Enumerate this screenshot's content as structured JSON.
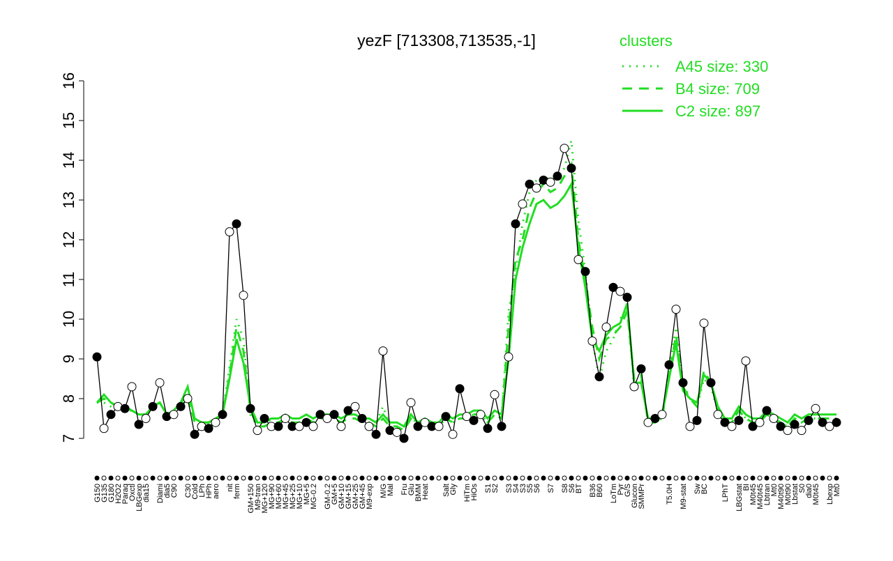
{
  "chart_data": {
    "type": "line",
    "title": "yezF [713308,713535,-1]",
    "categories": [
      "G150",
      "G135",
      "G180",
      "H2O2",
      "Paraq",
      "Oxctl",
      "LBGexp",
      "dia15",
      null,
      "Diami",
      "dia5",
      "C90",
      null,
      "C30",
      "Cold",
      "LPh",
      "HPh",
      "aero",
      null,
      "nit",
      "ferm",
      null,
      "GM+150",
      "M9-tran",
      "MG+120",
      "MG+90",
      "MG+60",
      "MG+45",
      "MG+25",
      "MG+10",
      "MG+5",
      "MG-0.2",
      null,
      "GM-0.2",
      "GM+5",
      "GM+10",
      "GM+15",
      "GM+25",
      "GM+45",
      "M9-exp",
      null,
      "M/G",
      "Mal",
      null,
      "Fru",
      "Glu",
      "BMM",
      "Heat",
      null,
      null,
      "Salt",
      "Gly",
      null,
      "HiTm",
      "HiOs",
      null,
      "S1",
      "S2",
      null,
      "S3",
      "S4",
      "S3",
      "S5",
      "S6",
      null,
      "S7",
      null,
      "S8",
      "S6",
      "BT",
      null,
      "B36",
      "B60",
      null,
      "LoTm",
      "Pyr",
      "G/S",
      "Glucon",
      "SMMPr",
      null,
      null,
      null,
      "T5.0H",
      null,
      "M9-stat",
      null,
      "Sw",
      "BC",
      null,
      null,
      "LPhT",
      null,
      "LBGstat",
      "BI",
      "M0t45",
      "M40t45",
      "Lbtran",
      "Mt0",
      "M40t90",
      "M0t90",
      "Lbstat",
      "S0",
      "dia0",
      "M0t45",
      null,
      "Lbexp",
      "Mt0"
    ],
    "values": [
      9.05,
      7.25,
      7.6,
      7.8,
      7.75,
      8.3,
      7.35,
      7.5,
      7.8,
      8.4,
      7.55,
      7.6,
      7.8,
      8.0,
      7.1,
      7.3,
      7.25,
      7.4,
      7.6,
      12.2,
      12.4,
      10.6,
      7.75,
      7.2,
      7.5,
      7.3,
      7.3,
      7.5,
      7.3,
      7.3,
      7.4,
      7.3,
      7.6,
      7.5,
      7.6,
      7.3,
      7.7,
      7.8,
      7.5,
      7.3,
      7.1,
      9.2,
      7.2,
      7.15,
      7.0,
      7.9,
      7.3,
      7.4,
      7.3,
      7.3,
      7.55,
      7.1,
      8.25,
      7.55,
      7.45,
      7.6,
      7.25,
      8.1,
      7.3,
      9.05,
      12.4,
      12.9,
      13.4,
      13.3,
      13.5,
      13.45,
      13.6,
      14.3,
      13.8,
      11.5,
      11.2,
      9.45,
      8.55,
      9.8,
      10.8,
      10.7,
      10.55,
      8.3,
      8.75,
      7.4,
      7.5,
      7.6,
      8.85,
      10.25,
      8.4,
      7.3,
      7.45,
      9.9,
      8.4,
      7.6,
      7.4,
      7.3,
      7.45,
      8.95,
      7.3,
      7.4,
      7.7,
      7.5,
      7.3,
      7.2,
      7.35,
      7.2,
      7.45,
      7.75,
      7.4,
      7.3,
      7.4
    ],
    "color": "#000000",
    "legend_title": "clusters",
    "series": [
      {
        "name": "A45 size: 330",
        "color": "#22dd22",
        "linestyle": "dotted",
        "values": [
          7.9,
          7.9,
          7.8,
          7.7,
          7.7,
          7.7,
          7.6,
          7.6,
          7.8,
          7.9,
          7.6,
          7.7,
          7.8,
          8.0,
          7.4,
          7.3,
          7.3,
          7.4,
          7.6,
          8.8,
          10.0,
          9.5,
          7.6,
          7.3,
          7.3,
          7.5,
          7.5,
          7.6,
          7.5,
          7.5,
          7.6,
          7.5,
          7.6,
          7.6,
          7.6,
          7.5,
          7.6,
          7.6,
          7.5,
          7.5,
          7.4,
          7.8,
          7.3,
          7.3,
          7.2,
          7.6,
          7.3,
          7.4,
          7.3,
          7.3,
          7.5,
          7.4,
          7.5,
          7.5,
          7.6,
          7.6,
          7.4,
          7.6,
          7.5,
          10.2,
          11.2,
          12.4,
          13.2,
          13.5,
          13.6,
          13.5,
          13.6,
          13.8,
          14.5,
          12.5,
          11.2,
          9.5,
          8.5,
          9.2,
          9.5,
          10.0,
          10.3,
          8.3,
          8.5,
          7.4,
          7.4,
          7.5,
          8.7,
          9.8,
          8.4,
          8.0,
          7.8,
          8.5,
          8.3,
          7.7,
          7.4,
          7.4,
          7.7,
          7.5,
          7.4,
          7.4,
          7.6,
          7.5,
          7.4,
          7.3,
          7.5,
          7.4,
          7.5,
          7.5,
          7.5,
          7.5,
          7.5
        ]
      },
      {
        "name": "B4 size: 709",
        "color": "#22dd22",
        "linestyle": "dashed",
        "values": [
          7.9,
          8.0,
          7.9,
          7.8,
          7.8,
          7.7,
          7.6,
          7.6,
          7.8,
          7.9,
          7.6,
          7.7,
          7.9,
          8.1,
          7.4,
          7.4,
          7.4,
          7.5,
          7.6,
          8.6,
          9.8,
          9.2,
          7.7,
          7.3,
          7.3,
          7.4,
          7.4,
          7.5,
          7.4,
          7.4,
          7.5,
          7.4,
          7.5,
          7.5,
          7.5,
          7.4,
          7.5,
          7.5,
          7.4,
          7.4,
          7.3,
          7.5,
          7.3,
          7.3,
          7.2,
          7.5,
          7.3,
          7.4,
          7.3,
          7.3,
          7.5,
          7.4,
          7.5,
          7.5,
          7.6,
          7.6,
          7.4,
          7.6,
          7.5,
          9.8,
          11.5,
          12.0,
          12.8,
          13.2,
          13.4,
          13.2,
          13.3,
          13.6,
          13.9,
          12.0,
          11.0,
          9.8,
          9.0,
          9.5,
          9.6,
          9.8,
          10.2,
          8.5,
          8.6,
          7.4,
          7.4,
          7.5,
          8.6,
          9.6,
          8.3,
          8.0,
          7.8,
          8.7,
          8.4,
          7.7,
          7.4,
          7.4,
          7.7,
          7.5,
          7.4,
          7.4,
          7.6,
          7.5,
          7.4,
          7.3,
          7.5,
          7.4,
          7.5,
          7.5,
          7.5,
          7.5,
          7.5
        ]
      },
      {
        "name": "C2 size: 897",
        "color": "#22dd22",
        "linestyle": "solid",
        "values": [
          7.9,
          8.1,
          7.9,
          7.8,
          7.8,
          7.7,
          7.6,
          7.6,
          7.8,
          7.9,
          7.6,
          7.7,
          7.9,
          8.3,
          7.5,
          7.4,
          7.4,
          7.5,
          7.6,
          8.5,
          9.5,
          8.9,
          7.8,
          7.4,
          7.4,
          7.5,
          7.5,
          7.6,
          7.5,
          7.5,
          7.6,
          7.5,
          7.6,
          7.6,
          7.6,
          7.5,
          7.6,
          7.6,
          7.5,
          7.5,
          7.4,
          7.6,
          7.4,
          7.4,
          7.3,
          7.6,
          7.4,
          7.5,
          7.4,
          7.4,
          7.6,
          7.5,
          7.6,
          7.6,
          7.7,
          7.7,
          7.5,
          7.7,
          7.6,
          9.0,
          11.0,
          11.8,
          12.4,
          12.9,
          13.0,
          12.8,
          12.9,
          13.1,
          13.4,
          11.8,
          10.8,
          9.5,
          9.2,
          9.6,
          9.8,
          9.9,
          10.4,
          8.4,
          8.4,
          7.5,
          7.5,
          7.6,
          8.5,
          9.4,
          8.2,
          8.0,
          7.9,
          8.6,
          8.4,
          7.8,
          7.5,
          7.5,
          7.8,
          7.6,
          7.5,
          7.5,
          7.7,
          7.6,
          7.5,
          7.4,
          7.6,
          7.5,
          7.6,
          7.6,
          7.6,
          7.6,
          7.6
        ]
      }
    ],
    "ylim": [
      7,
      16
    ],
    "yticks": [
      7,
      8,
      9,
      10,
      11,
      12,
      13,
      14,
      15,
      16
    ]
  }
}
